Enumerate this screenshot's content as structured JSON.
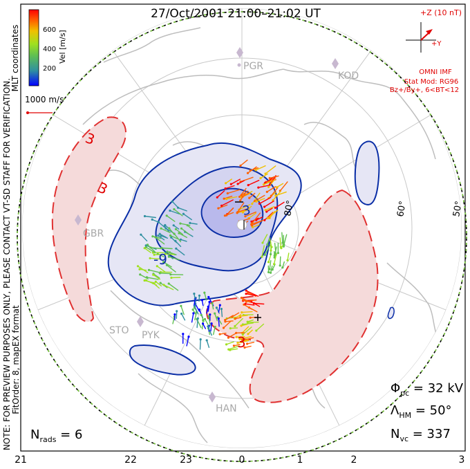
{
  "title": "27/Oct/2001 21:00–21:02 UT",
  "colorbar": {
    "label": "Vel [m/s]",
    "ticks": [
      "600",
      "400",
      "200"
    ],
    "colors": [
      "#0000ff",
      "#3090a0",
      "#60c050",
      "#a0e020",
      "#f0c000",
      "#ff6000",
      "#ff0000"
    ]
  },
  "coordinates_label": "MLT coordinates",
  "scale_vector_label": "1000 m/s",
  "imf": {
    "axis_z": "+Z (10 nT)",
    "axis_y": "+Y",
    "source": "OMNI IMF",
    "model": "Stat Mod: RG96",
    "condition": "Bz+/By+, 6<BT<12"
  },
  "notes": {
    "preview": "NOTE: FOR PREVIEW PURPOSES ONLY, PLEASE CONTACT VT-SD STAFF FOR VERIFICATION.",
    "fit": "FitOrder: 8, mapEX format"
  },
  "stations": [
    "PGR",
    "KOD",
    "GBR",
    "STO",
    "PYK",
    "HAN"
  ],
  "latitudes": [
    "80°",
    "60°",
    "50°"
  ],
  "contour_labels": [
    "3",
    "3",
    "-9",
    "3",
    "3"
  ],
  "stats": {
    "phi_symbol": "Φ",
    "phi_sub": "pc",
    "phi_value": " = 32 kV",
    "lambda_symbol": "Λ",
    "lambda_sub": "HM",
    "lambda_value": " = 50°",
    "nvc_symbol": "N",
    "nvc_sub": "vc",
    "nvc_value": " = 337",
    "nrads_symbol": "N",
    "nrads_sub": "rads",
    "nrads_value": " = 6"
  },
  "mlt_axis": [
    "21",
    "22",
    "23",
    "0",
    "1",
    "2",
    "3"
  ]
}
